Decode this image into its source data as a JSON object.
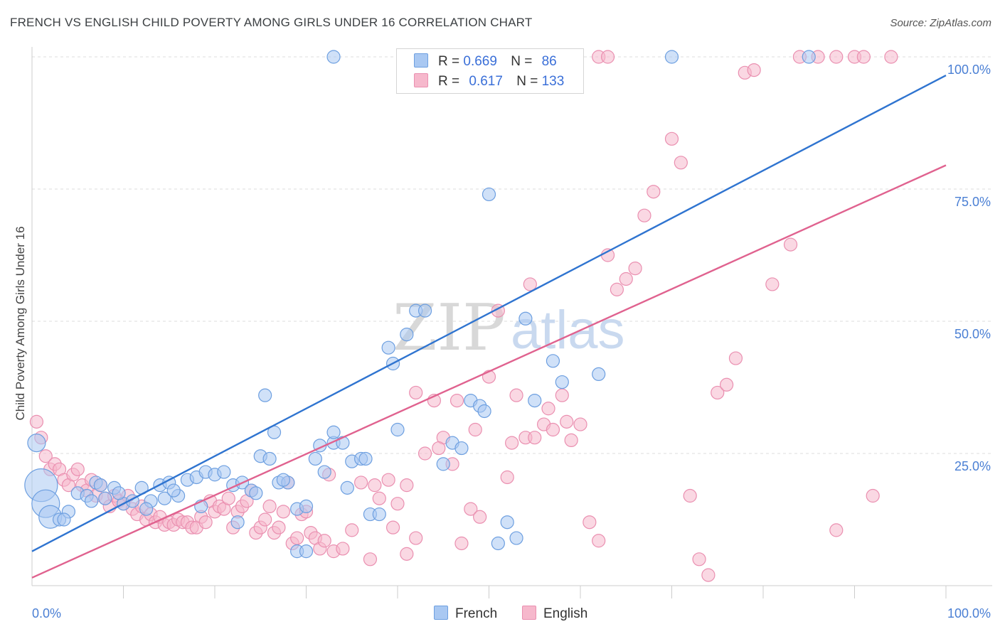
{
  "title": "FRENCH VS ENGLISH CHILD POVERTY AMONG GIRLS UNDER 16 CORRELATION CHART",
  "source": "Source: ZipAtlas.com",
  "watermark": {
    "zip": "ZIP",
    "atlas": "atlas"
  },
  "colors": {
    "french_fill": "#a9c8f2",
    "french_stroke": "#6d9fe0",
    "french_line": "#2f74d0",
    "english_fill": "#f6b8cc",
    "english_stroke": "#ea8fb0",
    "english_line": "#e0628f",
    "grid": "#dcdcdc",
    "tick_text": "#4a7fd4"
  },
  "legend": {
    "french": {
      "r_label": "R =",
      "r_value": "0.669",
      "n_label": "N =",
      "n_value": "86"
    },
    "english": {
      "r_label": "R =",
      "r_value": "0.617",
      "n_label": "N =",
      "n_value": "133"
    }
  },
  "bottom_legend": {
    "french": "French",
    "english": "English"
  },
  "chart_data": {
    "type": "scatter",
    "title": "FRENCH VS ENGLISH CHILD POVERTY AMONG GIRLS UNDER 16 CORRELATION CHART",
    "xlabel": "",
    "ylabel": "Child Poverty Among Girls Under 16",
    "xlim": [
      0,
      100
    ],
    "ylim": [
      0,
      100
    ],
    "x_tick_labels": [
      "0.0%",
      "100.0%"
    ],
    "y_tick_labels": [
      "25.0%",
      "50.0%",
      "75.0%",
      "100.0%"
    ],
    "y_ticks": [
      25,
      50,
      75,
      100
    ],
    "series": [
      {
        "name": "French",
        "trend": {
          "x0": 0,
          "y0": 6.5,
          "x1": 100,
          "y1": 96.5
        },
        "points": [
          [
            0.5,
            27,
            3
          ],
          [
            1,
            19,
            6
          ],
          [
            1.5,
            15.5,
            5
          ],
          [
            2,
            13,
            4
          ],
          [
            3,
            12.5,
            2
          ],
          [
            4,
            14,
            2
          ],
          [
            5,
            17.5,
            2
          ],
          [
            6,
            17,
            2
          ],
          [
            7,
            19.5,
            2
          ],
          [
            8,
            16.5,
            2
          ],
          [
            9,
            18.5,
            2
          ],
          [
            10,
            15.5,
            2
          ],
          [
            11,
            16,
            2
          ],
          [
            12,
            18.5,
            2
          ],
          [
            13,
            16,
            2
          ],
          [
            14,
            19,
            2
          ],
          [
            14.5,
            16.5,
            2
          ],
          [
            15,
            19.5,
            2
          ],
          [
            16,
            17,
            2
          ],
          [
            17,
            20,
            2
          ],
          [
            18,
            20.5,
            2
          ],
          [
            19,
            21.5,
            2
          ],
          [
            20,
            21,
            2
          ],
          [
            21,
            21.5,
            2
          ],
          [
            22,
            19,
            2
          ],
          [
            23,
            19.5,
            2
          ],
          [
            24,
            18,
            2
          ],
          [
            25,
            24.5,
            2
          ],
          [
            26,
            24,
            2
          ],
          [
            27,
            19.5,
            2
          ],
          [
            28,
            19.5,
            2
          ],
          [
            29,
            14.5,
            2
          ],
          [
            30,
            15,
            2
          ],
          [
            31,
            24,
            2
          ],
          [
            31.5,
            26.5,
            2
          ],
          [
            32,
            21.5,
            2
          ],
          [
            33,
            27,
            2
          ],
          [
            34,
            27,
            2
          ],
          [
            35,
            23.5,
            2
          ],
          [
            36,
            24,
            2
          ],
          [
            37,
            13.5,
            2
          ],
          [
            38,
            13.5,
            2
          ],
          [
            39,
            45,
            2
          ],
          [
            39.5,
            42,
            2
          ],
          [
            40,
            29.5,
            2
          ],
          [
            41,
            47.5,
            2
          ],
          [
            42,
            52,
            2
          ],
          [
            43,
            52,
            2
          ],
          [
            45,
            23,
            2
          ],
          [
            46,
            27,
            2
          ],
          [
            47,
            26,
            2
          ],
          [
            48,
            35,
            2
          ],
          [
            49,
            34,
            2
          ],
          [
            49.5,
            33,
            2
          ],
          [
            50,
            74,
            2
          ],
          [
            51,
            8,
            2
          ],
          [
            52,
            12,
            2
          ],
          [
            53,
            9,
            2
          ],
          [
            54,
            50.5,
            2
          ],
          [
            55,
            35,
            2
          ],
          [
            57,
            42.5,
            2
          ],
          [
            58,
            38.5,
            2
          ],
          [
            62,
            40,
            2
          ],
          [
            25.5,
            36,
            2
          ],
          [
            26.5,
            29,
            2
          ],
          [
            29,
            6.5,
            2
          ],
          [
            30,
            6.5,
            2
          ],
          [
            33,
            29,
            2
          ],
          [
            34.5,
            18.5,
            2
          ],
          [
            36.5,
            24,
            2
          ],
          [
            3.5,
            12.5,
            2
          ],
          [
            6.5,
            16,
            2
          ],
          [
            7.5,
            19,
            2
          ],
          [
            9.5,
            17.5,
            2
          ],
          [
            12.5,
            14.5,
            2
          ],
          [
            15.5,
            18,
            2
          ],
          [
            18.5,
            15,
            2
          ],
          [
            22.5,
            12,
            2
          ],
          [
            24.5,
            17.5,
            2
          ],
          [
            27.5,
            20,
            2
          ],
          [
            33,
            100,
            2
          ],
          [
            70,
            100,
            2
          ],
          [
            85,
            100,
            2
          ],
          [
            41,
            100,
            2
          ],
          [
            47,
            100,
            2
          ]
        ]
      },
      {
        "name": "English",
        "trend": {
          "x0": 0,
          "y0": 1.5,
          "x1": 100,
          "y1": 79.5
        },
        "points": [
          [
            0.5,
            31,
            2
          ],
          [
            1,
            28,
            2
          ],
          [
            1.5,
            24.5,
            2
          ],
          [
            2,
            22,
            2
          ],
          [
            2.5,
            23,
            2
          ],
          [
            3,
            22,
            2
          ],
          [
            3.5,
            20,
            2
          ],
          [
            4,
            19,
            2
          ],
          [
            4.5,
            21,
            2
          ],
          [
            5,
            22,
            2
          ],
          [
            5.5,
            19,
            2
          ],
          [
            6,
            18,
            2
          ],
          [
            6.5,
            20,
            2
          ],
          [
            7,
            17,
            2
          ],
          [
            7.5,
            19,
            2
          ],
          [
            8,
            16.5,
            2
          ],
          [
            8.5,
            15,
            2
          ],
          [
            9,
            17,
            2
          ],
          [
            9.5,
            16,
            2
          ],
          [
            10,
            15.5,
            2
          ],
          [
            10.5,
            17,
            2
          ],
          [
            11,
            14.5,
            2
          ],
          [
            11.5,
            13.5,
            2
          ],
          [
            12,
            15,
            2
          ],
          [
            12.5,
            12.5,
            2
          ],
          [
            13,
            13.5,
            2
          ],
          [
            13.5,
            12,
            2
          ],
          [
            14,
            13,
            2
          ],
          [
            14.5,
            11.5,
            2
          ],
          [
            15,
            12,
            2
          ],
          [
            15.5,
            11.5,
            2
          ],
          [
            16,
            12.5,
            2
          ],
          [
            16.5,
            12,
            2
          ],
          [
            17,
            12,
            2
          ],
          [
            17.5,
            11,
            2
          ],
          [
            18,
            11,
            2
          ],
          [
            18.5,
            13,
            2
          ],
          [
            19,
            12,
            2
          ],
          [
            19.5,
            16,
            2
          ],
          [
            20,
            14,
            2
          ],
          [
            20.5,
            15,
            2
          ],
          [
            21,
            14.5,
            2
          ],
          [
            21.5,
            16.5,
            2
          ],
          [
            22,
            11,
            2
          ],
          [
            22.5,
            14,
            2
          ],
          [
            23,
            15,
            2
          ],
          [
            23.5,
            16,
            2
          ],
          [
            24,
            18,
            2
          ],
          [
            24.5,
            10,
            2
          ],
          [
            25,
            11,
            2
          ],
          [
            25.5,
            12.5,
            2
          ],
          [
            26,
            15,
            2
          ],
          [
            26.5,
            10,
            2
          ],
          [
            27,
            11,
            2
          ],
          [
            27.5,
            14,
            2
          ],
          [
            28,
            19.5,
            2
          ],
          [
            28.5,
            8,
            2
          ],
          [
            29,
            9,
            2
          ],
          [
            29.5,
            13.5,
            2
          ],
          [
            30,
            14,
            2
          ],
          [
            30.5,
            10,
            2
          ],
          [
            31,
            9,
            2
          ],
          [
            31.5,
            7,
            2
          ],
          [
            32,
            8.5,
            2
          ],
          [
            32.5,
            21,
            2
          ],
          [
            33,
            6.5,
            2
          ],
          [
            34,
            7,
            2
          ],
          [
            35,
            10.5,
            2
          ],
          [
            36,
            19.5,
            2
          ],
          [
            37,
            5,
            2
          ],
          [
            38,
            16.5,
            2
          ],
          [
            39,
            20,
            2
          ],
          [
            40,
            15.5,
            2
          ],
          [
            41,
            19,
            2
          ],
          [
            42,
            36.5,
            2
          ],
          [
            43,
            25,
            2
          ],
          [
            44,
            35,
            2
          ],
          [
            45,
            28,
            2
          ],
          [
            46,
            23,
            2
          ],
          [
            47,
            8,
            2
          ],
          [
            48,
            14.5,
            2
          ],
          [
            49,
            13,
            2
          ],
          [
            50,
            39.5,
            2
          ],
          [
            51,
            52,
            2
          ],
          [
            52,
            20.5,
            2
          ],
          [
            53,
            36,
            2
          ],
          [
            54,
            28,
            2
          ],
          [
            55,
            28,
            2
          ],
          [
            56,
            30.5,
            2
          ],
          [
            57,
            29.5,
            2
          ],
          [
            58,
            36,
            2
          ],
          [
            59,
            27.5,
            2
          ],
          [
            60,
            30.5,
            2
          ],
          [
            61,
            12,
            2
          ],
          [
            62,
            8.5,
            2
          ],
          [
            63,
            62.5,
            2
          ],
          [
            64,
            56,
            2
          ],
          [
            65,
            58,
            2
          ],
          [
            66,
            60,
            2
          ],
          [
            67,
            70,
            2
          ],
          [
            68,
            74.5,
            2
          ],
          [
            70,
            84.5,
            2
          ],
          [
            71,
            80,
            2
          ],
          [
            72,
            17,
            2
          ],
          [
            73,
            5,
            2
          ],
          [
            74,
            2,
            2
          ],
          [
            75,
            36.5,
            2
          ],
          [
            76,
            38,
            2
          ],
          [
            77,
            43,
            2
          ],
          [
            78,
            97,
            2
          ],
          [
            79,
            97.5,
            2
          ],
          [
            81,
            57,
            2
          ],
          [
            83,
            64.5,
            2
          ],
          [
            84,
            100,
            2
          ],
          [
            86,
            100,
            2
          ],
          [
            88,
            100,
            2
          ],
          [
            90,
            100,
            2
          ],
          [
            91,
            100,
            2
          ],
          [
            94,
            100,
            2
          ],
          [
            88,
            10.5,
            2
          ],
          [
            92,
            17,
            2
          ],
          [
            62,
            100,
            2
          ],
          [
            63,
            100,
            2
          ],
          [
            41,
            6,
            2
          ],
          [
            42,
            9,
            2
          ],
          [
            37.5,
            19,
            2
          ],
          [
            39.5,
            11,
            2
          ],
          [
            44.5,
            26,
            2
          ],
          [
            46.5,
            35,
            2
          ],
          [
            48.5,
            29.5,
            2
          ],
          [
            52.5,
            27,
            2
          ],
          [
            54.5,
            57,
            2
          ],
          [
            56.5,
            33.5,
            2
          ],
          [
            58.5,
            31,
            2
          ]
        ]
      }
    ]
  }
}
